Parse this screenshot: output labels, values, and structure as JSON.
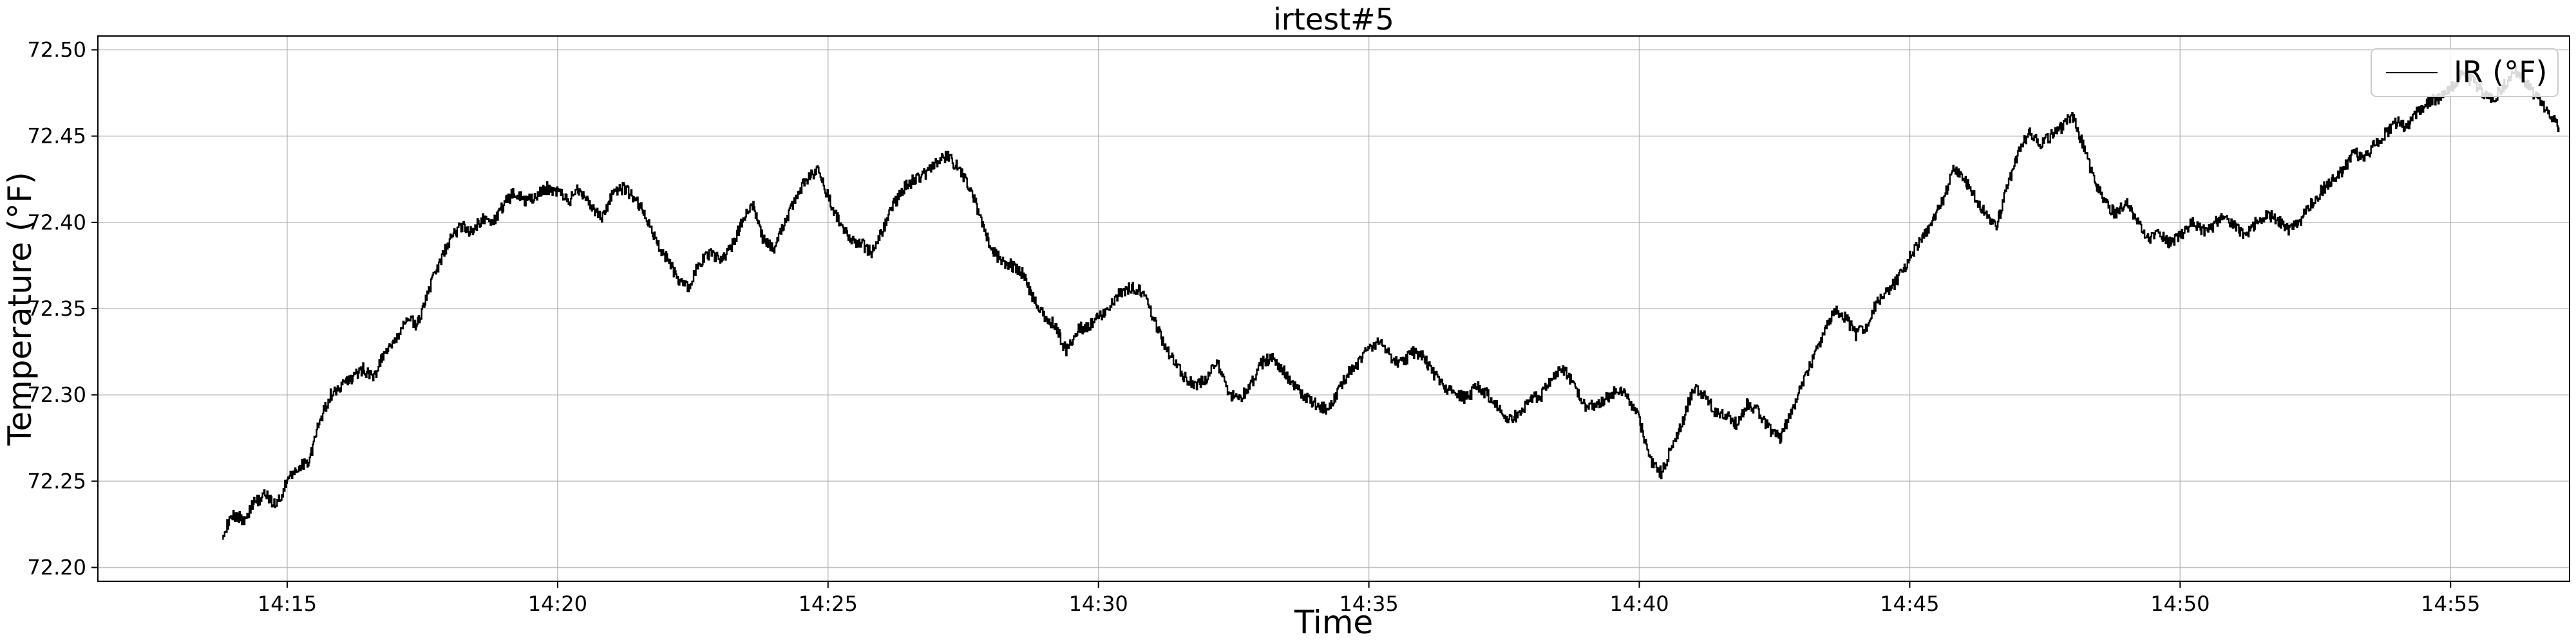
{
  "chart_data": {
    "type": "line",
    "title": "irtest#5",
    "xlabel": "Time",
    "ylabel": "Temperature (°F)",
    "grid": true,
    "legend_placement": "top-right",
    "xlim_minutes": [
      11.5,
      57.2
    ],
    "ylim": [
      72.192,
      72.508
    ],
    "x_ticks": [
      {
        "value": 15,
        "label": "14:15"
      },
      {
        "value": 20,
        "label": "14:20"
      },
      {
        "value": 25,
        "label": "14:25"
      },
      {
        "value": 30,
        "label": "14:30"
      },
      {
        "value": 35,
        "label": "14:35"
      },
      {
        "value": 40,
        "label": "14:40"
      },
      {
        "value": 45,
        "label": "14:45"
      },
      {
        "value": 50,
        "label": "14:50"
      },
      {
        "value": 55,
        "label": "14:55"
      }
    ],
    "y_ticks": [
      {
        "value": 72.2,
        "label": "72.20"
      },
      {
        "value": 72.25,
        "label": "72.25"
      },
      {
        "value": 72.3,
        "label": "72.30"
      },
      {
        "value": 72.35,
        "label": "72.35"
      },
      {
        "value": 72.4,
        "label": "72.40"
      },
      {
        "value": 72.45,
        "label": "72.45"
      },
      {
        "value": 72.5,
        "label": "72.50"
      }
    ],
    "series": [
      {
        "name": "IR (°F)",
        "color": "#000000",
        "points": [
          [
            13.8,
            72.22
          ],
          [
            14.0,
            72.23
          ],
          [
            14.2,
            72.228
          ],
          [
            14.4,
            72.238
          ],
          [
            14.6,
            72.242
          ],
          [
            14.8,
            72.236
          ],
          [
            15.0,
            72.25
          ],
          [
            15.2,
            72.258
          ],
          [
            15.4,
            72.262
          ],
          [
            15.6,
            72.285
          ],
          [
            15.8,
            72.3
          ],
          [
            16.0,
            72.305
          ],
          [
            16.2,
            72.31
          ],
          [
            16.4,
            72.315
          ],
          [
            16.6,
            72.31
          ],
          [
            16.8,
            72.325
          ],
          [
            17.0,
            72.33
          ],
          [
            17.2,
            72.345
          ],
          [
            17.4,
            72.34
          ],
          [
            17.6,
            72.36
          ],
          [
            17.8,
            72.375
          ],
          [
            18.0,
            72.39
          ],
          [
            18.2,
            72.398
          ],
          [
            18.4,
            72.395
          ],
          [
            18.6,
            72.402
          ],
          [
            18.8,
            72.4
          ],
          [
            19.0,
            72.41
          ],
          [
            19.2,
            72.418
          ],
          [
            19.4,
            72.412
          ],
          [
            19.6,
            72.415
          ],
          [
            19.8,
            72.42
          ],
          [
            20.0,
            72.418
          ],
          [
            20.2,
            72.412
          ],
          [
            20.4,
            72.42
          ],
          [
            20.6,
            72.41
          ],
          [
            20.8,
            72.402
          ],
          [
            21.0,
            72.415
          ],
          [
            21.2,
            72.42
          ],
          [
            21.4,
            72.415
          ],
          [
            21.6,
            72.405
          ],
          [
            21.8,
            72.39
          ],
          [
            22.0,
            72.38
          ],
          [
            22.2,
            72.368
          ],
          [
            22.4,
            72.362
          ],
          [
            22.6,
            72.375
          ],
          [
            22.8,
            72.382
          ],
          [
            23.0,
            72.378
          ],
          [
            23.2,
            72.385
          ],
          [
            23.4,
            72.4
          ],
          [
            23.6,
            72.41
          ],
          [
            23.8,
            72.39
          ],
          [
            24.0,
            72.385
          ],
          [
            24.2,
            72.4
          ],
          [
            24.4,
            72.415
          ],
          [
            24.6,
            72.425
          ],
          [
            24.8,
            72.43
          ],
          [
            25.0,
            72.415
          ],
          [
            25.2,
            72.4
          ],
          [
            25.4,
            72.39
          ],
          [
            25.6,
            72.388
          ],
          [
            25.8,
            72.382
          ],
          [
            26.0,
            72.395
          ],
          [
            26.2,
            72.41
          ],
          [
            26.4,
            72.42
          ],
          [
            26.6,
            72.425
          ],
          [
            26.8,
            72.428
          ],
          [
            27.0,
            72.435
          ],
          [
            27.2,
            72.438
          ],
          [
            27.4,
            72.432
          ],
          [
            27.6,
            72.42
          ],
          [
            27.8,
            72.405
          ],
          [
            28.0,
            72.385
          ],
          [
            28.2,
            72.378
          ],
          [
            28.4,
            72.375
          ],
          [
            28.6,
            72.37
          ],
          [
            28.8,
            72.355
          ],
          [
            29.0,
            72.345
          ],
          [
            29.2,
            72.34
          ],
          [
            29.4,
            72.325
          ],
          [
            29.6,
            72.338
          ],
          [
            29.8,
            72.34
          ],
          [
            30.0,
            72.345
          ],
          [
            30.2,
            72.352
          ],
          [
            30.4,
            72.36
          ],
          [
            30.6,
            72.362
          ],
          [
            30.8,
            72.36
          ],
          [
            31.0,
            72.345
          ],
          [
            31.2,
            72.33
          ],
          [
            31.4,
            72.318
          ],
          [
            31.6,
            72.31
          ],
          [
            31.8,
            72.305
          ],
          [
            32.0,
            72.31
          ],
          [
            32.2,
            72.318
          ],
          [
            32.4,
            72.3
          ],
          [
            32.6,
            72.298
          ],
          [
            32.8,
            72.305
          ],
          [
            33.0,
            72.318
          ],
          [
            33.2,
            72.322
          ],
          [
            33.4,
            72.315
          ],
          [
            33.6,
            72.305
          ],
          [
            33.8,
            72.3
          ],
          [
            34.0,
            72.295
          ],
          [
            34.2,
            72.292
          ],
          [
            34.4,
            72.3
          ],
          [
            34.6,
            72.312
          ],
          [
            34.8,
            72.318
          ],
          [
            35.0,
            72.328
          ],
          [
            35.2,
            72.33
          ],
          [
            35.4,
            72.322
          ],
          [
            35.6,
            72.318
          ],
          [
            35.8,
            72.325
          ],
          [
            36.0,
            72.322
          ],
          [
            36.2,
            72.312
          ],
          [
            36.4,
            72.305
          ],
          [
            36.6,
            72.3
          ],
          [
            36.8,
            72.298
          ],
          [
            37.0,
            72.305
          ],
          [
            37.2,
            72.3
          ],
          [
            37.4,
            72.292
          ],
          [
            37.6,
            72.285
          ],
          [
            37.8,
            72.29
          ],
          [
            38.0,
            72.298
          ],
          [
            38.2,
            72.3
          ],
          [
            38.4,
            72.312
          ],
          [
            38.6,
            72.315
          ],
          [
            38.8,
            72.305
          ],
          [
            39.0,
            72.292
          ],
          [
            39.2,
            72.295
          ],
          [
            39.4,
            72.298
          ],
          [
            39.6,
            72.303
          ],
          [
            39.8,
            72.298
          ],
          [
            40.0,
            72.285
          ],
          [
            40.2,
            72.262
          ],
          [
            40.4,
            72.255
          ],
          [
            40.6,
            72.27
          ],
          [
            40.8,
            72.285
          ],
          [
            41.0,
            72.305
          ],
          [
            41.2,
            72.3
          ],
          [
            41.4,
            72.29
          ],
          [
            41.6,
            72.288
          ],
          [
            41.8,
            72.283
          ],
          [
            42.0,
            72.295
          ],
          [
            42.2,
            72.29
          ],
          [
            42.4,
            72.28
          ],
          [
            42.6,
            72.275
          ],
          [
            42.8,
            72.29
          ],
          [
            43.0,
            72.305
          ],
          [
            43.2,
            72.32
          ],
          [
            43.4,
            72.335
          ],
          [
            43.6,
            72.35
          ],
          [
            43.8,
            72.345
          ],
          [
            44.0,
            72.335
          ],
          [
            44.2,
            72.34
          ],
          [
            44.4,
            72.355
          ],
          [
            44.6,
            72.36
          ],
          [
            44.8,
            72.368
          ],
          [
            45.0,
            72.38
          ],
          [
            45.2,
            72.39
          ],
          [
            45.4,
            72.4
          ],
          [
            45.6,
            72.412
          ],
          [
            45.8,
            72.43
          ],
          [
            46.0,
            72.425
          ],
          [
            46.2,
            72.415
          ],
          [
            46.4,
            72.405
          ],
          [
            46.6,
            72.398
          ],
          [
            46.8,
            72.42
          ],
          [
            47.0,
            72.44
          ],
          [
            47.2,
            72.452
          ],
          [
            47.4,
            72.445
          ],
          [
            47.6,
            72.45
          ],
          [
            47.8,
            72.455
          ],
          [
            48.0,
            72.462
          ],
          [
            48.2,
            72.445
          ],
          [
            48.4,
            72.425
          ],
          [
            48.6,
            72.412
          ],
          [
            48.8,
            72.405
          ],
          [
            49.0,
            72.412
          ],
          [
            49.2,
            72.4
          ],
          [
            49.4,
            72.39
          ],
          [
            49.6,
            72.395
          ],
          [
            49.8,
            72.388
          ],
          [
            50.0,
            72.392
          ],
          [
            50.2,
            72.4
          ],
          [
            50.4,
            72.395
          ],
          [
            50.6,
            72.398
          ],
          [
            50.8,
            72.405
          ],
          [
            51.0,
            72.398
          ],
          [
            51.2,
            72.392
          ],
          [
            51.4,
            72.4
          ],
          [
            51.6,
            72.405
          ],
          [
            51.8,
            72.402
          ],
          [
            52.0,
            72.395
          ],
          [
            52.2,
            72.4
          ],
          [
            52.4,
            72.41
          ],
          [
            52.6,
            72.418
          ],
          [
            52.8,
            72.425
          ],
          [
            53.0,
            72.43
          ],
          [
            53.2,
            72.44
          ],
          [
            53.4,
            72.438
          ],
          [
            53.6,
            72.445
          ],
          [
            53.8,
            72.452
          ],
          [
            54.0,
            72.458
          ],
          [
            54.2,
            72.455
          ],
          [
            54.4,
            72.465
          ],
          [
            54.6,
            72.47
          ],
          [
            54.8,
            72.472
          ],
          [
            55.0,
            72.478
          ],
          [
            55.2,
            72.485
          ],
          [
            55.4,
            72.482
          ],
          [
            55.6,
            72.475
          ],
          [
            55.8,
            72.472
          ],
          [
            56.0,
            72.48
          ],
          [
            56.2,
            72.488
          ],
          [
            56.4,
            72.48
          ],
          [
            56.6,
            72.472
          ],
          [
            56.8,
            72.465
          ],
          [
            57.0,
            72.455
          ]
        ]
      }
    ]
  }
}
